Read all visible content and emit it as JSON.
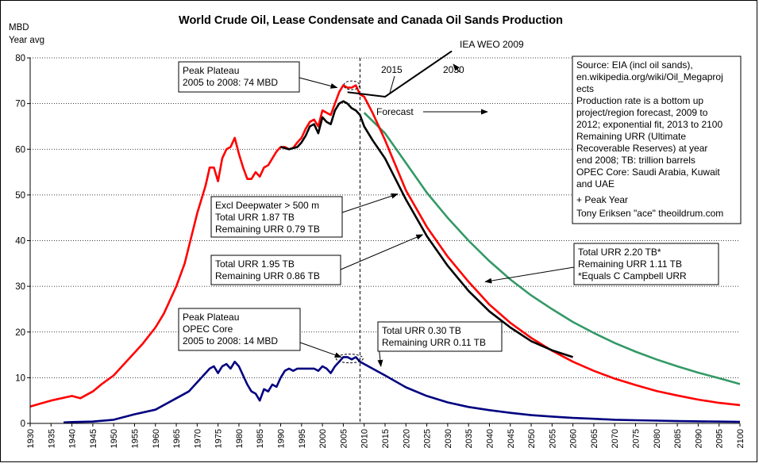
{
  "chart_data": {
    "type": "line",
    "title": "World Crude Oil, Lease Condensate and Canada Oil Sands Production",
    "ylabel_line1": "MBD",
    "ylabel_line2": "Year avg",
    "xlim": [
      1930,
      2100
    ],
    "ylim": [
      0,
      80
    ],
    "yticks": [
      0,
      10,
      20,
      30,
      40,
      50,
      60,
      70,
      80
    ],
    "xticks": [
      1930,
      1935,
      1940,
      1945,
      1950,
      1955,
      1960,
      1965,
      1970,
      1975,
      1980,
      1985,
      1990,
      1995,
      2000,
      2005,
      2010,
      2015,
      2020,
      2025,
      2030,
      2035,
      2040,
      2045,
      2050,
      2055,
      2060,
      2065,
      2070,
      2075,
      2080,
      2085,
      2090,
      2095,
      2100
    ],
    "grid": "horizontal dotted",
    "colors": {
      "world": "#ff0000",
      "excl_deepwater": "#000000",
      "forecast_high": "#339966",
      "opec": "#000080",
      "grid": "#000000"
    },
    "series": [
      {
        "key": "world",
        "color": "#ff0000",
        "x": [
          1930,
          1935,
          1940,
          1942,
          1945,
          1947,
          1950,
          1952,
          1955,
          1957,
          1960,
          1962,
          1965,
          1967,
          1970,
          1972,
          1973,
          1974,
          1975,
          1976,
          1977,
          1978,
          1979,
          1980,
          1981,
          1982,
          1983,
          1984,
          1985,
          1986,
          1987,
          1988,
          1989,
          1990,
          1991,
          1992,
          1993,
          1994,
          1995,
          1996,
          1997,
          1998,
          1999,
          2000,
          2001,
          2002,
          2003,
          2004,
          2005,
          2006,
          2007,
          2008,
          2009,
          2010,
          2012,
          2015,
          2020,
          2025,
          2030,
          2035,
          2040,
          2045,
          2050,
          2055,
          2060,
          2065,
          2070,
          2075,
          2080,
          2085,
          2090,
          2095,
          2100
        ],
        "y": [
          3.7,
          5.0,
          6.0,
          5.5,
          7.0,
          8.5,
          10.5,
          12.5,
          15.5,
          17.5,
          21,
          24,
          30,
          35,
          46,
          52,
          56,
          56,
          53,
          58,
          60,
          60.5,
          62.5,
          59,
          56,
          53.5,
          53.5,
          55,
          54,
          56,
          56.5,
          58,
          59.5,
          60.5,
          60.5,
          60,
          60.3,
          61.5,
          62.5,
          64.5,
          66,
          66.5,
          65,
          68.5,
          68,
          67.5,
          70,
          72.5,
          74,
          73.5,
          73.5,
          74,
          72,
          71.5,
          68,
          62,
          51,
          43,
          36.5,
          31,
          26,
          22,
          18.7,
          15.9,
          13.5,
          11.5,
          9.8,
          8.4,
          7.1,
          6.1,
          5.2,
          4.5,
          4.0
        ]
      },
      {
        "key": "excl_deepwater",
        "color": "#000000",
        "x": [
          1990,
          1992,
          1994,
          1995,
          1996,
          1997,
          1998,
          1999,
          2000,
          2001,
          2002,
          2003,
          2004,
          2005,
          2006,
          2007,
          2008,
          2009,
          2010,
          2012,
          2015,
          2020,
          2025,
          2030,
          2035,
          2040,
          2045,
          2050,
          2055,
          2060
        ],
        "y": [
          60.5,
          60,
          60.5,
          61.5,
          63,
          65,
          65.5,
          63.5,
          67,
          66,
          65.5,
          68.5,
          70,
          70.5,
          70,
          69,
          68.5,
          67.5,
          65,
          62,
          58,
          49,
          41,
          34.5,
          29,
          24.5,
          21,
          18,
          16,
          14.5
        ]
      },
      {
        "key": "forecast_high",
        "color": "#339966",
        "x": [
          2010,
          2015,
          2020,
          2025,
          2030,
          2035,
          2040,
          2045,
          2050,
          2055,
          2060,
          2065,
          2070,
          2075,
          2080,
          2085,
          2090,
          2095,
          2100
        ],
        "y": [
          68,
          63.5,
          57,
          50.5,
          45,
          40,
          35.5,
          31.5,
          28,
          25,
          22.2,
          19.8,
          17.6,
          15.7,
          14.0,
          12.5,
          11.1,
          9.9,
          8.6
        ]
      },
      {
        "key": "opec",
        "color": "#000080",
        "x": [
          1938,
          1940,
          1945,
          1950,
          1955,
          1960,
          1965,
          1968,
          1970,
          1972,
          1973,
          1974,
          1975,
          1976,
          1977,
          1978,
          1979,
          1980,
          1981,
          1982,
          1983,
          1984,
          1985,
          1986,
          1987,
          1988,
          1989,
          1990,
          1991,
          1992,
          1993,
          1994,
          1995,
          1996,
          1997,
          1998,
          1999,
          2000,
          2001,
          2002,
          2003,
          2004,
          2005,
          2006,
          2007,
          2008,
          2009,
          2010,
          2012,
          2015,
          2020,
          2025,
          2030,
          2035,
          2040,
          2045,
          2050,
          2055,
          2060,
          2065,
          2070,
          2075,
          2080,
          2085,
          2090,
          2095,
          2100
        ],
        "y": [
          0.2,
          0.3,
          0.4,
          0.8,
          2.0,
          3.0,
          5.5,
          7.0,
          9.0,
          11.0,
          12.0,
          12.5,
          11.0,
          12.5,
          13.0,
          12.0,
          13.5,
          12.5,
          10.5,
          8.5,
          7.0,
          6.5,
          5.0,
          7.5,
          7.0,
          8.5,
          8.0,
          10.0,
          11.5,
          12.0,
          11.5,
          12.0,
          12.0,
          12.0,
          12.0,
          12.0,
          11.5,
          12.5,
          12.0,
          11.0,
          12.5,
          13.5,
          14.5,
          14.5,
          14.0,
          14.5,
          13.5,
          13.0,
          12.0,
          10.5,
          7.9,
          6.0,
          4.6,
          3.6,
          2.9,
          2.3,
          1.8,
          1.5,
          1.2,
          1.0,
          0.8,
          0.7,
          0.6,
          0.5,
          0.45,
          0.4,
          0.35
        ]
      },
      {
        "key": "iea",
        "color": "#000000",
        "x": [
          2006,
          2015,
          2031
        ],
        "y": [
          72.5,
          71.5,
          81.5
        ]
      }
    ],
    "forecast_divider_year": 2009,
    "annotations": {
      "peak_plateau": [
        "Peak Plateau",
        "2005 to 2008: 74 MBD"
      ],
      "iea": "IEA WEO 2009",
      "label_2015": "2015",
      "label_2030": "2030",
      "forecast": "Forecast",
      "excl_deepwater": [
        "Excl Deepwater > 500 m",
        "Total URR 1.87 TB",
        "Remaining URR 0.79 TB"
      ],
      "total_195": [
        "Total URR 1.95 TB",
        "Remaining URR 0.86 TB"
      ],
      "total_220": [
        "Total URR 2.20 TB*",
        "Remaining URR 1.11 TB",
        "*Equals C Campbell URR"
      ],
      "opec_plateau": [
        "Peak Plateau",
        "OPEC Core",
        "2005 to 2008: 14 MBD"
      ],
      "total_030": [
        "Total URR 0.30 TB",
        "Remaining URR 0.11 TB"
      ],
      "source": [
        "Source: EIA (incl oil sands),",
        "en.wikipedia.org/wiki/Oil_Megaproj",
        "ects",
        "Production rate is a bottom up",
        "project/region forecast, 2009 to",
        "2012; exponential fit, 2013 to 2100",
        "Remaining URR (Ultimate",
        "Recoverable Reserves) at year",
        "end 2008; TB: trillion barrels",
        "OPEC Core: Saudi Arabia, Kuwait",
        "and UAE",
        "+ Peak Year",
        "Tony Eriksen \"ace\" theoildrum.com"
      ]
    }
  }
}
